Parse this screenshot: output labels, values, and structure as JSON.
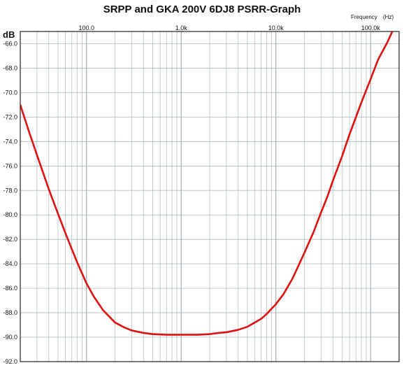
{
  "chart_data": {
    "type": "line",
    "title": "SRPP and GKA 200V 6DJ8 PSRR-Graph",
    "xlabel": "Frequency",
    "xunit": "(Hz)",
    "ylabel": "dB",
    "xscale": "log",
    "xlim": [
      20,
      200000
    ],
    "ylim": [
      -92,
      -65
    ],
    "grid": true,
    "x_ticks": [
      100,
      1000,
      10000,
      100000
    ],
    "x_tick_labels": [
      "100.0",
      "1.0k",
      "10.0k",
      "100.0k"
    ],
    "y_ticks": [
      -66,
      -68,
      -70,
      -72,
      -74,
      -76,
      -78,
      -80,
      -82,
      -84,
      -86,
      -88,
      -90,
      -92
    ],
    "y_tick_labels": [
      "-66.0",
      "-68.0",
      "-70.0",
      "-72.0",
      "-74.0",
      "-76.0",
      "-78.0",
      "-80.0",
      "-82.0",
      "-84.0",
      "-86.0",
      "-88.0",
      "-90.0",
      "-92.0"
    ],
    "series": [
      {
        "color": "#e01010",
        "x": [
          20,
          25,
          30,
          35,
          40,
          50,
          60,
          70,
          80,
          100,
          120,
          150,
          200,
          250,
          300,
          400,
          500,
          700,
          1000,
          1500,
          2000,
          2500,
          3000,
          4000,
          5000,
          6000,
          7000,
          8000,
          10000,
          12000,
          15000,
          20000,
          25000,
          30000,
          35000,
          40000,
          50000,
          60000,
          70000,
          80000,
          100000,
          120000,
          150000,
          200000
        ],
        "y": [
          -71,
          -73.3,
          -75.1,
          -76.6,
          -77.9,
          -79.9,
          -81.5,
          -82.8,
          -83.9,
          -85.6,
          -86.7,
          -87.8,
          -88.8,
          -89.2,
          -89.45,
          -89.65,
          -89.75,
          -89.8,
          -89.8,
          -89.8,
          -89.75,
          -89.65,
          -89.6,
          -89.4,
          -89.15,
          -88.8,
          -88.5,
          -88.1,
          -87.3,
          -86.5,
          -85.2,
          -83.1,
          -81.4,
          -79.8,
          -78.5,
          -77.2,
          -75.2,
          -73.4,
          -72,
          -70.8,
          -68.9,
          -67.3,
          -65.9,
          -63.8
        ]
      }
    ]
  }
}
